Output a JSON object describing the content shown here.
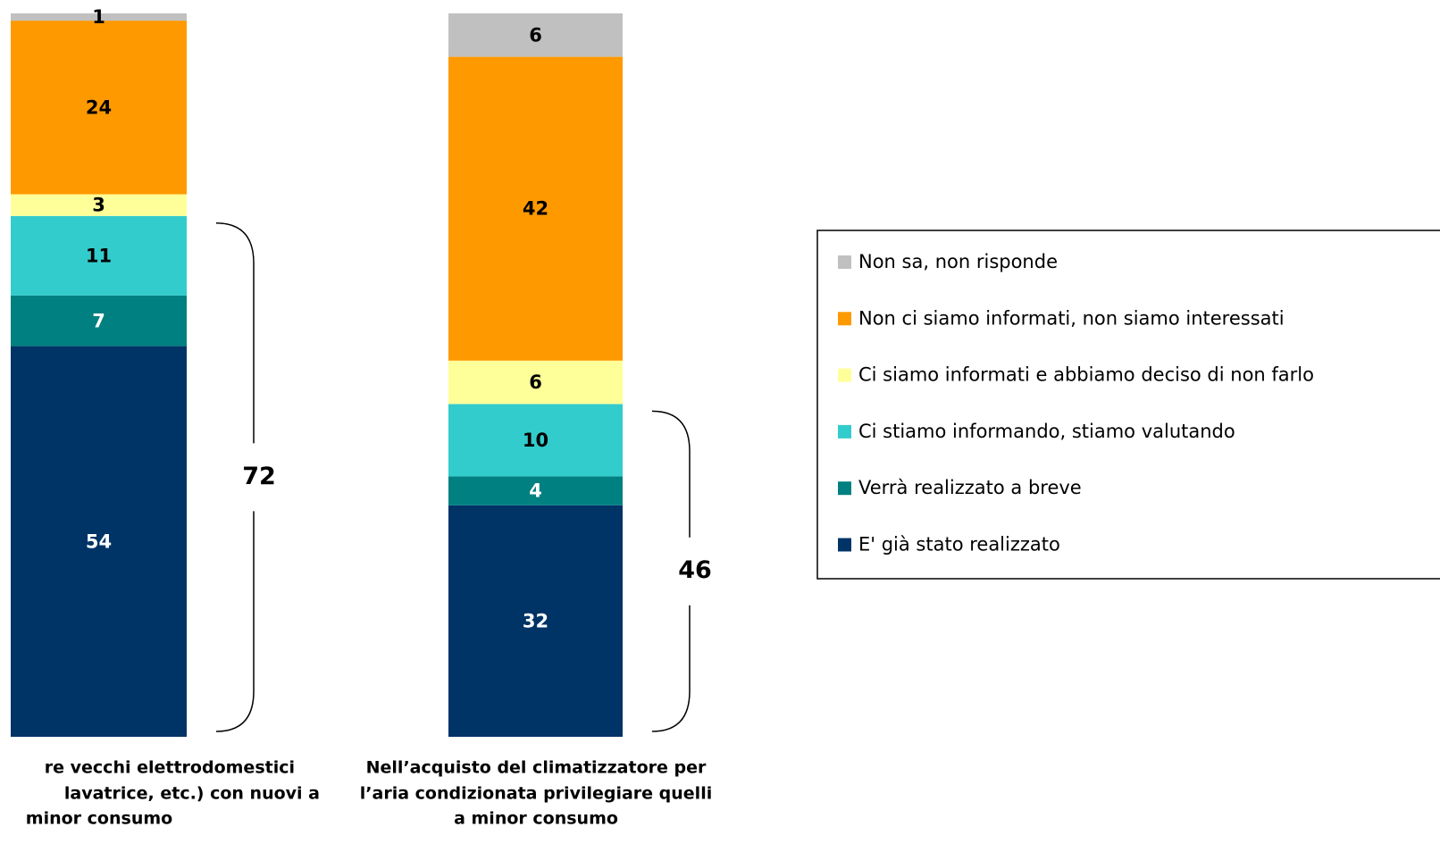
{
  "chart_data": {
    "type": "stacked_bar",
    "categories": [
      [
        "re vecchi elettrodomestici",
        "lavatrice, etc.) con nuovi a",
        "minor consumo"
      ],
      [
        "Nell’acquisto del climatizzatore per",
        "l’aria condizionata privilegiare quelli",
        "a minor consumo"
      ]
    ],
    "series": [
      {
        "name": "E' già stato realizzato",
        "color": "#003366",
        "values": [
          54,
          32
        ]
      },
      {
        "name": "Verrà realizzato a breve",
        "color": "#008080",
        "values": [
          7,
          4
        ]
      },
      {
        "name": "Ci stiamo informando, stiamo valutando",
        "color": "#33CCCC",
        "values": [
          11,
          10
        ]
      },
      {
        "name": "Ci siamo informati e abbiamo deciso di non farlo",
        "color": "#FFFF99",
        "values": [
          3,
          6
        ]
      },
      {
        "name": "Non ci siamo informati, non siamo interessati",
        "color": "#FF9900",
        "values": [
          24,
          42
        ]
      },
      {
        "name": "Non sa, non risponde",
        "color": "#C0C0C0",
        "values": [
          1,
          6
        ]
      }
    ],
    "annotations": [
      72,
      46
    ],
    "ylim": [
      0,
      100
    ]
  }
}
